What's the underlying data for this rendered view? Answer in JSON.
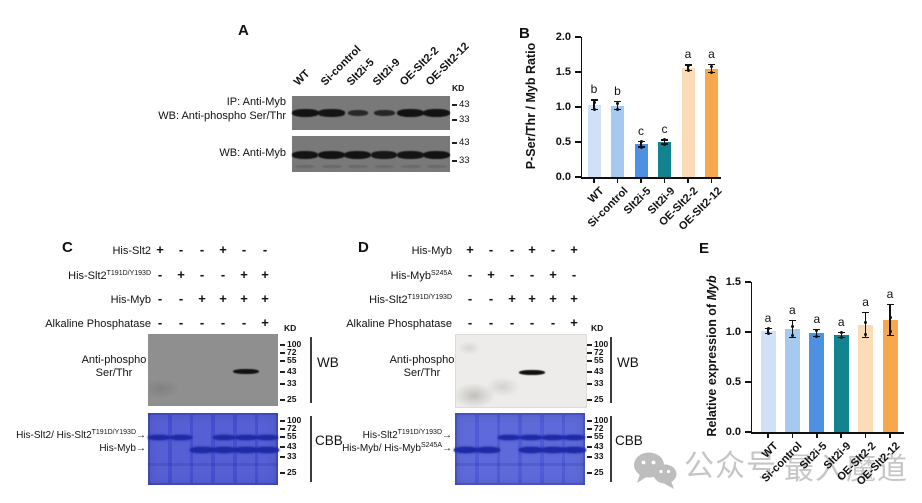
{
  "panel_labels": {
    "a": "A",
    "b": "B",
    "c": "C",
    "d": "D",
    "e": "E"
  },
  "groups": [
    "WT",
    "Si-control",
    "Slt2i-5",
    "Slt2i-9",
    "OE-Slt2-2",
    "OE-Slt2-12"
  ],
  "icons": {
    "arrow_right": "→"
  },
  "colors": {
    "bars": [
      "#cfe0f7",
      "#a6c9f0",
      "#4e90e2",
      "#12838f",
      "#fbdcb6",
      "#f7a84e"
    ],
    "blot_gray": "#797979",
    "wb_gray_c": "#8f8f8f",
    "wb_light_d": "#edecea",
    "cbb_blue_c": "#4650cf",
    "cbb_blue_d": "#4f5cd6",
    "band_dark": "#121212",
    "cbb_band": "#1e2aa6",
    "watermark_gray": "#c6c6c6"
  },
  "panelA": {
    "ip_label": "IP: Anti-Myb",
    "wb_phospho_label": "WB: Anti-phospho Ser/Thr",
    "wb_myb_label": "WB: Anti-Myb",
    "kd": "KD",
    "markers": [
      "43",
      "33"
    ],
    "band_intensity_top": [
      1,
      0.95,
      0.5,
      0.55,
      1,
      1
    ],
    "band_intensity_bottom": [
      0.95,
      1,
      1,
      0.9,
      0.95,
      1
    ]
  },
  "panelC": {
    "rows": [
      {
        "main": "His-Slt2",
        "sup": "",
        "signs": [
          "+",
          "-",
          "-",
          "+",
          "-",
          "-"
        ]
      },
      {
        "main": "His-Slt2",
        "sup": "T191D/Y193D",
        "signs": [
          "-",
          "+",
          "-",
          "-",
          "+",
          "+"
        ]
      },
      {
        "main": "His-Myb",
        "sup": "",
        "signs": [
          "-",
          "-",
          "+",
          "+",
          "+",
          "+"
        ]
      },
      {
        "main": "Alkaline Phosphatase",
        "sup": "",
        "signs": [
          "-",
          "-",
          "-",
          "-",
          "-",
          "+"
        ]
      }
    ],
    "kd": "KD",
    "ladder": [
      "100",
      "72",
      "55",
      "43",
      "33",
      "25"
    ],
    "wb_label": "WB",
    "cbb_label": "CBB",
    "blot_label_line1": "Anti-phospho",
    "blot_label_line2": "Ser/Thr",
    "wb_band_lane": 4,
    "cbb_upper_main": "His-Slt2/ His-Slt2",
    "cbb_upper_sup": "T191D/Y193D",
    "cbb_lower_main": "His-Myb",
    "cbb_lower_sup": "",
    "cbb_upper_lanes": [
      1,
      1,
      0,
      1,
      1,
      1
    ],
    "cbb_lower_lanes": [
      0,
      0,
      1,
      1,
      1,
      1
    ]
  },
  "panelD": {
    "rows": [
      {
        "main": "His-Myb",
        "sup": "",
        "signs": [
          "+",
          "-",
          "-",
          "+",
          "-",
          "+"
        ]
      },
      {
        "main": "His-Myb",
        "sup": "S245A",
        "signs": [
          "-",
          "+",
          "-",
          "-",
          "+",
          "-"
        ]
      },
      {
        "main": "His-Slt2",
        "sup": "T191D/Y193D",
        "signs": [
          "-",
          "-",
          "+",
          "+",
          "+",
          "+"
        ]
      },
      {
        "main": "Alkaline Phosphatase",
        "sup": "",
        "signs": [
          "-",
          "-",
          "-",
          "-",
          "-",
          "+"
        ]
      }
    ],
    "kd": "KD",
    "ladder": [
      "100",
      "72",
      "55",
      "43",
      "33",
      "25"
    ],
    "wb_label": "WB",
    "cbb_label": "CBB",
    "blot_label_line1": "Anti-phospho",
    "blot_label_line2": "Ser/Thr",
    "wb_band_lane": 3,
    "cbb_upper_main": "His-Slt2",
    "cbb_upper_sup": "T191D/Y193D",
    "cbb_lower_main": "His-Myb/ His-Myb",
    "cbb_lower_sup": "S245A",
    "cbb_upper_lanes": [
      0,
      0,
      1,
      1,
      1,
      1
    ],
    "cbb_lower_lanes": [
      1,
      1,
      0,
      1,
      1,
      1
    ]
  },
  "chart_data": [
    {
      "panel": "B",
      "type": "bar",
      "categories": [
        "WT",
        "Si-control",
        "Slt2i-5",
        "Slt2i-9",
        "OE-Slt2-2",
        "OE-Slt2-12"
      ],
      "values": [
        1.03,
        1.02,
        0.47,
        0.5,
        1.56,
        1.55
      ],
      "errors": [
        0.08,
        0.07,
        0.05,
        0.04,
        0.05,
        0.07
      ],
      "sig_letters": [
        "b",
        "b",
        "c",
        "c",
        "a",
        "a"
      ],
      "ylabel": "P-Ser/Thr / Myb Ratio",
      "xlabel": "",
      "ylim": [
        0,
        2.0
      ],
      "yticks": [
        0,
        0.5,
        1,
        1.5,
        2
      ],
      "ytick_labels": [
        "0.0",
        "0.5",
        "1.0",
        "1.5",
        "2.0"
      ],
      "grid": false,
      "legend": "none",
      "bar_colors": [
        "#cfe0f7",
        "#a6c9f0",
        "#4e90e2",
        "#12838f",
        "#fbdcb6",
        "#f7a84e"
      ]
    },
    {
      "panel": "E",
      "type": "bar",
      "categories": [
        "WT",
        "Si-control",
        "Slt2i-5",
        "Slt2i-9",
        "OE-Slt2-2",
        "OE-Slt2-12"
      ],
      "values": [
        1.01,
        1.03,
        0.99,
        0.97,
        1.07,
        1.12
      ],
      "errors": [
        0.03,
        0.09,
        0.04,
        0.03,
        0.13,
        0.16
      ],
      "sig_letters": [
        "a",
        "a",
        "a",
        "a",
        "a",
        "a"
      ],
      "ylabel_prefix": "Relative expression of ",
      "ylabel_italic": "Myb",
      "xlabel": "",
      "ylim": [
        0,
        1.5
      ],
      "yticks": [
        0,
        0.5,
        1,
        1.5
      ],
      "ytick_labels": [
        "0.0",
        "0.5",
        "1.0",
        "1.5"
      ],
      "grid": false,
      "legend": "none",
      "bar_colors": [
        "#cfe0f7",
        "#a6c9f0",
        "#4e90e2",
        "#12838f",
        "#fbdcb6",
        "#f7a84e"
      ]
    }
  ],
  "watermark": {
    "icon": "wechat-icon",
    "text": "公众号",
    "text2": "最入魔道"
  }
}
